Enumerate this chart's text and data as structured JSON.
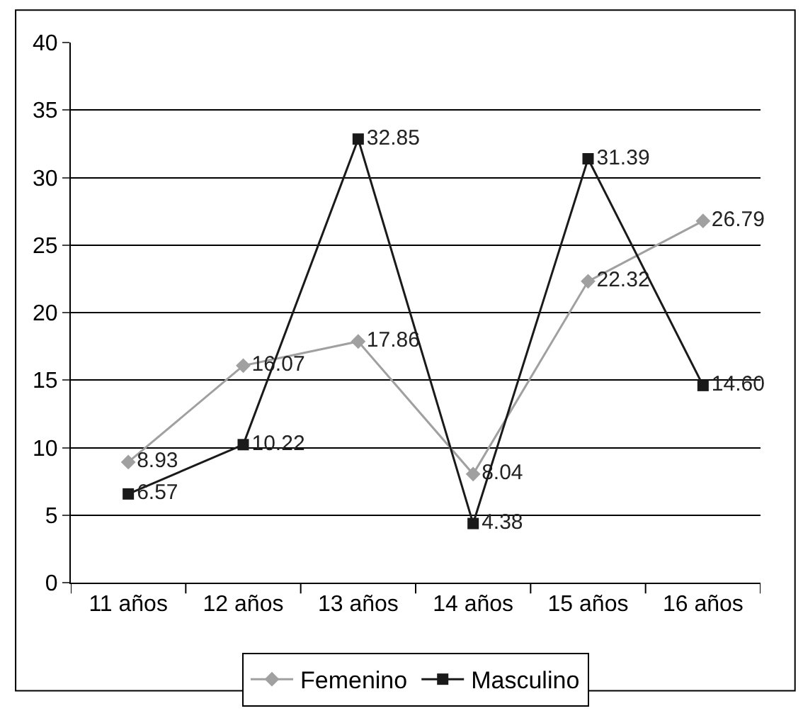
{
  "chart_data": {
    "type": "line",
    "categories": [
      "11 años",
      "12 años",
      "13 años",
      "14 años",
      "15 años",
      "16 años"
    ],
    "series": [
      {
        "name": "Femenino",
        "color": "#a0a0a0",
        "marker": "diamond",
        "values": [
          8.93,
          16.07,
          17.86,
          8.04,
          22.32,
          26.79
        ],
        "value_labels": [
          "8.93",
          "16.07",
          "17.86",
          "8.04",
          "22.32",
          "26.79"
        ]
      },
      {
        "name": "Masculino",
        "color": "#1a1a1a",
        "marker": "square",
        "values": [
          6.57,
          10.22,
          32.85,
          4.38,
          31.39,
          14.6
        ],
        "value_labels": [
          "6.57",
          "10.22",
          "32.85",
          "4.38",
          "31.39",
          "14.60"
        ]
      }
    ],
    "ylim": [
      0,
      40
    ],
    "yticks": [
      0,
      5,
      10,
      15,
      20,
      25,
      30,
      35,
      40
    ],
    "grid": "y",
    "legend": "bottom",
    "line_style": "solid"
  }
}
